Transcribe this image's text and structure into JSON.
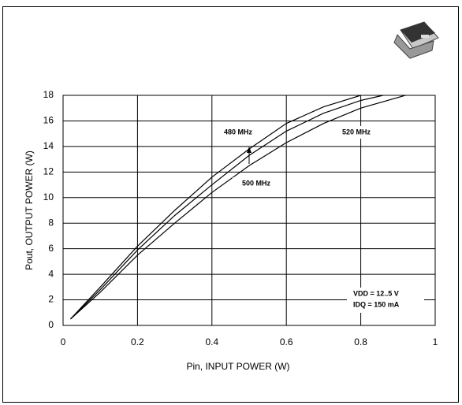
{
  "chart_data": {
    "type": "line",
    "xlabel": "Pin, INPUT POWER (W)",
    "ylabel": "Pout, OUTPUT POWER (W)",
    "xlim": [
      0,
      1
    ],
    "xticks": [
      0,
      0.2,
      0.4,
      0.6,
      0.8,
      1
    ],
    "ylim": [
      0,
      18
    ],
    "yticks": [
      0,
      2,
      4,
      6,
      8,
      10,
      12,
      14,
      16,
      18
    ],
    "grid": true,
    "series": [
      {
        "name": "480 MHz",
        "color": "#000000",
        "x": [
          0.02,
          0.1,
          0.2,
          0.3,
          0.4,
          0.5,
          0.6,
          0.7,
          0.8
        ],
        "values": [
          0.5,
          3,
          6.2,
          9,
          11.6,
          13.8,
          15.8,
          17.1,
          18
        ]
      },
      {
        "name": "500 MHz",
        "color": "#000000",
        "x": [
          0.02,
          0.1,
          0.2,
          0.3,
          0.4,
          0.5,
          0.6,
          0.7,
          0.8,
          0.86
        ],
        "values": [
          0.5,
          2.8,
          5.9,
          8.6,
          11,
          13.3,
          15.2,
          16.6,
          17.6,
          18
        ]
      },
      {
        "name": "520 MHz",
        "color": "#000000",
        "x": [
          0.02,
          0.1,
          0.2,
          0.3,
          0.4,
          0.5,
          0.6,
          0.7,
          0.8,
          0.92
        ],
        "values": [
          0.5,
          2.6,
          5.5,
          8,
          10.4,
          12.5,
          14.3,
          15.8,
          17,
          18
        ]
      }
    ],
    "annotations": [
      "VDD = 12..5 V",
      "IDQ = 150 mA"
    ]
  }
}
